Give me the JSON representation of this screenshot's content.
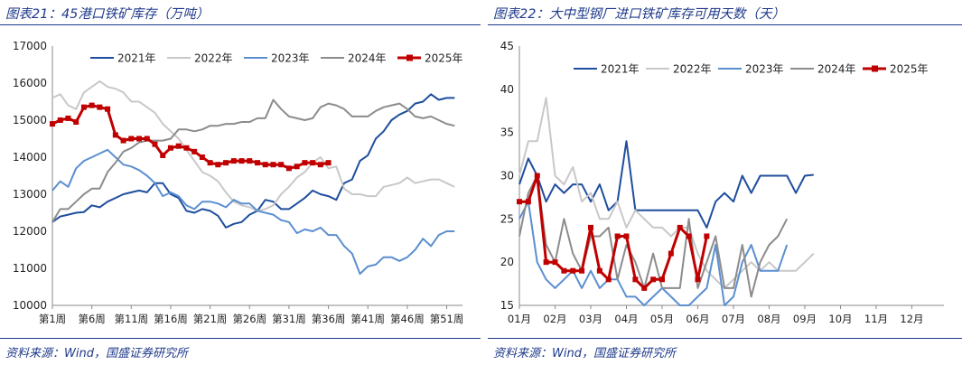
{
  "charts": [
    {
      "fig_title": "图表21：45港口铁矿库存（万吨）",
      "source": "资料来源：Wind，国盛证券研究所"
    },
    {
      "fig_title": "图表22：大中型钢厂进口铁矿库存可用天数（天）",
      "source": "资料来源：Wind，国盛证券研究所"
    }
  ],
  "chart_data": [
    {
      "type": "line",
      "title": "",
      "ylim": [
        10000,
        17000
      ],
      "yticks": [
        10000,
        11000,
        12000,
        13000,
        14000,
        15000,
        16000,
        17000
      ],
      "x_tick_labels": [
        "第1周",
        "第6周",
        "第11周",
        "第16周",
        "第21周",
        "第26周",
        "第31周",
        "第36周",
        "第41周",
        "第46周",
        "第51周"
      ],
      "x_tick_weeks": [
        1,
        6,
        11,
        16,
        21,
        26,
        31,
        36,
        41,
        46,
        51
      ],
      "x_range_weeks": [
        1,
        53
      ],
      "grid": false,
      "legend_position": "top",
      "series": [
        {
          "name": "2021年",
          "color": "#1f4e9e",
          "width": 2,
          "values": [
            12250,
            12400,
            12450,
            12500,
            12520,
            12700,
            12650,
            12800,
            12900,
            13000,
            13050,
            13100,
            13050,
            13300,
            13300,
            13000,
            12900,
            12550,
            12500,
            12600,
            12550,
            12420,
            12100,
            12200,
            12250,
            12450,
            12550,
            12850,
            12800,
            12600,
            12600,
            12750,
            12900,
            13100,
            13000,
            12950,
            12850,
            13300,
            13400,
            13900,
            14050,
            14500,
            14700,
            15000,
            15150,
            15250,
            15450,
            15500,
            15700,
            15550,
            15600,
            15600
          ]
        },
        {
          "name": "2022年",
          "color": "#c8c8c8",
          "width": 2,
          "values": [
            15600,
            15700,
            15400,
            15300,
            15750,
            15900,
            16050,
            15900,
            15850,
            15750,
            15500,
            15500,
            15350,
            15200,
            14900,
            14700,
            14500,
            14200,
            13900,
            13600,
            13500,
            13350,
            13050,
            12800,
            12700,
            12650,
            12550,
            12600,
            12700,
            13000,
            13200,
            13450,
            13600,
            13850,
            14000,
            13700,
            13750,
            13150,
            13000,
            13000,
            12950,
            12950,
            13200,
            13250,
            13300,
            13450,
            13300,
            13350,
            13400,
            13400,
            13300,
            13200
          ]
        },
        {
          "name": "2023年",
          "color": "#5b8fd0",
          "width": 2,
          "values": [
            13100,
            13350,
            13200,
            13700,
            13900,
            14000,
            14100,
            14200,
            14000,
            13800,
            13750,
            13650,
            13500,
            13300,
            12950,
            13050,
            12950,
            12700,
            12600,
            12800,
            12800,
            12750,
            12650,
            12850,
            12750,
            12750,
            12550,
            12500,
            12450,
            12300,
            12250,
            11950,
            12050,
            12000,
            12100,
            11900,
            11900,
            11600,
            11400,
            10850,
            11050,
            11100,
            11300,
            11300,
            11200,
            11300,
            11500,
            11800,
            11600,
            11900,
            12000,
            12000
          ]
        },
        {
          "name": "2024年",
          "color": "#8c8c8c",
          "width": 2,
          "values": [
            12250,
            12600,
            12600,
            12800,
            13000,
            13150,
            13150,
            13600,
            13850,
            14150,
            14250,
            14400,
            14450,
            14450,
            14450,
            14500,
            14750,
            14750,
            14700,
            14750,
            14850,
            14850,
            14900,
            14900,
            14950,
            14950,
            15050,
            15050,
            15550,
            15300,
            15100,
            15050,
            15000,
            15050,
            15350,
            15450,
            15400,
            15300,
            15100,
            15100,
            15100,
            15250,
            15350,
            15400,
            15450,
            15300,
            15100,
            15050,
            15100,
            15000,
            14900,
            14850
          ]
        },
        {
          "name": "2025年",
          "color": "#c00000",
          "width": 3,
          "markers": true,
          "values": [
            14900,
            15000,
            15050,
            14950,
            15350,
            15400,
            15350,
            15300,
            14600,
            14450,
            14500,
            14500,
            14500,
            14350,
            14050,
            14250,
            14300,
            14250,
            14150,
            14000,
            13850,
            13800,
            13850,
            13900,
            13900,
            13900,
            13850,
            13800,
            13800,
            13800,
            13700,
            13750,
            13850,
            13850,
            13800,
            13850
          ]
        }
      ]
    },
    {
      "type": "line",
      "title": "",
      "ylim": [
        15,
        45
      ],
      "yticks": [
        15,
        20,
        25,
        30,
        35,
        40,
        45
      ],
      "x_tick_labels": [
        "01月",
        "02月",
        "03月",
        "04月",
        "05月",
        "06月",
        "07月",
        "08月",
        "09月",
        "10月",
        "11月",
        "12月"
      ],
      "x_range_months": [
        1,
        12.9
      ],
      "grid": false,
      "legend_position": "top",
      "series": [
        {
          "name": "2021年",
          "color": "#1f4e9e",
          "width": 2,
          "points": [
            [
              1.0,
              29
            ],
            [
              1.25,
              32
            ],
            [
              1.5,
              30
            ],
            [
              1.75,
              27
            ],
            [
              2.0,
              29
            ],
            [
              2.25,
              28
            ],
            [
              2.5,
              29
            ],
            [
              2.75,
              29
            ],
            [
              3.0,
              27
            ],
            [
              3.25,
              29
            ],
            [
              3.5,
              26
            ],
            [
              3.75,
              27
            ],
            [
              4.0,
              34
            ],
            [
              4.25,
              26
            ],
            [
              4.5,
              26
            ],
            [
              4.75,
              26
            ],
            [
              5.0,
              26
            ],
            [
              5.25,
              26
            ],
            [
              5.5,
              26
            ],
            [
              5.75,
              26
            ],
            [
              6.0,
              26
            ],
            [
              6.25,
              24
            ],
            [
              6.5,
              27
            ],
            [
              6.75,
              28
            ],
            [
              7.0,
              27
            ],
            [
              7.25,
              30
            ],
            [
              7.5,
              28
            ],
            [
              7.75,
              30
            ],
            [
              8.0,
              30
            ],
            [
              8.25,
              30
            ],
            [
              8.5,
              30
            ],
            [
              8.75,
              28
            ],
            [
              9.0,
              30
            ],
            [
              9.25,
              30.1
            ]
          ]
        },
        {
          "name": "2022年",
          "color": "#c8c8c8",
          "width": 2,
          "points": [
            [
              1.0,
              30
            ],
            [
              1.25,
              34
            ],
            [
              1.5,
              34
            ],
            [
              1.75,
              39
            ],
            [
              2.0,
              30
            ],
            [
              2.25,
              29
            ],
            [
              2.5,
              31
            ],
            [
              2.75,
              27
            ],
            [
              3.0,
              28
            ],
            [
              3.25,
              25
            ],
            [
              3.5,
              25
            ],
            [
              3.75,
              27
            ],
            [
              4.0,
              24
            ],
            [
              4.25,
              26
            ],
            [
              4.5,
              25
            ],
            [
              4.75,
              24
            ],
            [
              5.0,
              24
            ],
            [
              5.25,
              23
            ],
            [
              5.5,
              24
            ],
            [
              5.75,
              24
            ],
            [
              6.0,
              21
            ],
            [
              6.25,
              19
            ],
            [
              6.5,
              18
            ],
            [
              6.75,
              17
            ],
            [
              7.0,
              18
            ],
            [
              7.25,
              19
            ],
            [
              7.5,
              20
            ],
            [
              7.75,
              19
            ],
            [
              8.0,
              20
            ],
            [
              8.25,
              19
            ],
            [
              8.5,
              19
            ],
            [
              8.75,
              19
            ],
            [
              9.0,
              20
            ],
            [
              9.25,
              21
            ]
          ]
        },
        {
          "name": "2023年",
          "color": "#5b8fd0",
          "width": 2,
          "points": [
            [
              1.0,
              25
            ],
            [
              1.25,
              27
            ],
            [
              1.5,
              20
            ],
            [
              1.75,
              18
            ],
            [
              2.0,
              17
            ],
            [
              2.25,
              18
            ],
            [
              2.5,
              19
            ],
            [
              2.75,
              17
            ],
            [
              3.0,
              19
            ],
            [
              3.25,
              17
            ],
            [
              3.5,
              18
            ],
            [
              3.75,
              18
            ],
            [
              4.0,
              16
            ],
            [
              4.25,
              16
            ],
            [
              4.5,
              15
            ],
            [
              4.75,
              16
            ],
            [
              5.0,
              17
            ],
            [
              5.25,
              16
            ],
            [
              5.5,
              15
            ],
            [
              5.75,
              15
            ],
            [
              6.0,
              16
            ],
            [
              6.25,
              17
            ],
            [
              6.5,
              22
            ],
            [
              6.75,
              15
            ],
            [
              7.0,
              16
            ],
            [
              7.25,
              20
            ],
            [
              7.5,
              22
            ],
            [
              7.75,
              19
            ],
            [
              8.0,
              19
            ],
            [
              8.25,
              19
            ],
            [
              8.5,
              22
            ]
          ]
        },
        {
          "name": "2024年",
          "color": "#8c8c8c",
          "width": 2,
          "points": [
            [
              1.0,
              23
            ],
            [
              1.25,
              28
            ],
            [
              1.5,
              30
            ],
            [
              1.75,
              22
            ],
            [
              2.0,
              20
            ],
            [
              2.25,
              25
            ],
            [
              2.5,
              21
            ],
            [
              2.75,
              19
            ],
            [
              3.0,
              23
            ],
            [
              3.25,
              23
            ],
            [
              3.5,
              24
            ],
            [
              3.75,
              18
            ],
            [
              4.0,
              22
            ],
            [
              4.25,
              20
            ],
            [
              4.5,
              17
            ],
            [
              4.75,
              21
            ],
            [
              5.0,
              17
            ],
            [
              5.25,
              17
            ],
            [
              5.5,
              17
            ],
            [
              5.75,
              25
            ],
            [
              6.0,
              17
            ],
            [
              6.25,
              20
            ],
            [
              6.5,
              23
            ],
            [
              6.75,
              17
            ],
            [
              7.0,
              17
            ],
            [
              7.25,
              22
            ],
            [
              7.5,
              16
            ],
            [
              7.75,
              20
            ],
            [
              8.0,
              22
            ],
            [
              8.25,
              23
            ],
            [
              8.5,
              25
            ]
          ]
        },
        {
          "name": "2025年",
          "color": "#c00000",
          "width": 3,
          "markers": true,
          "points": [
            [
              1.0,
              27
            ],
            [
              1.25,
              27
            ],
            [
              1.5,
              30
            ],
            [
              1.75,
              20
            ],
            [
              2.0,
              20
            ],
            [
              2.25,
              19
            ],
            [
              2.5,
              19
            ],
            [
              2.75,
              19
            ],
            [
              3.0,
              24
            ],
            [
              3.25,
              19
            ],
            [
              3.5,
              18
            ],
            [
              3.75,
              23
            ],
            [
              4.0,
              23
            ],
            [
              4.25,
              18
            ],
            [
              4.5,
              17
            ],
            [
              4.75,
              18
            ],
            [
              5.0,
              18
            ],
            [
              5.25,
              21
            ],
            [
              5.5,
              24
            ],
            [
              5.75,
              23
            ],
            [
              6.0,
              18
            ],
            [
              6.25,
              23
            ]
          ]
        }
      ]
    }
  ]
}
